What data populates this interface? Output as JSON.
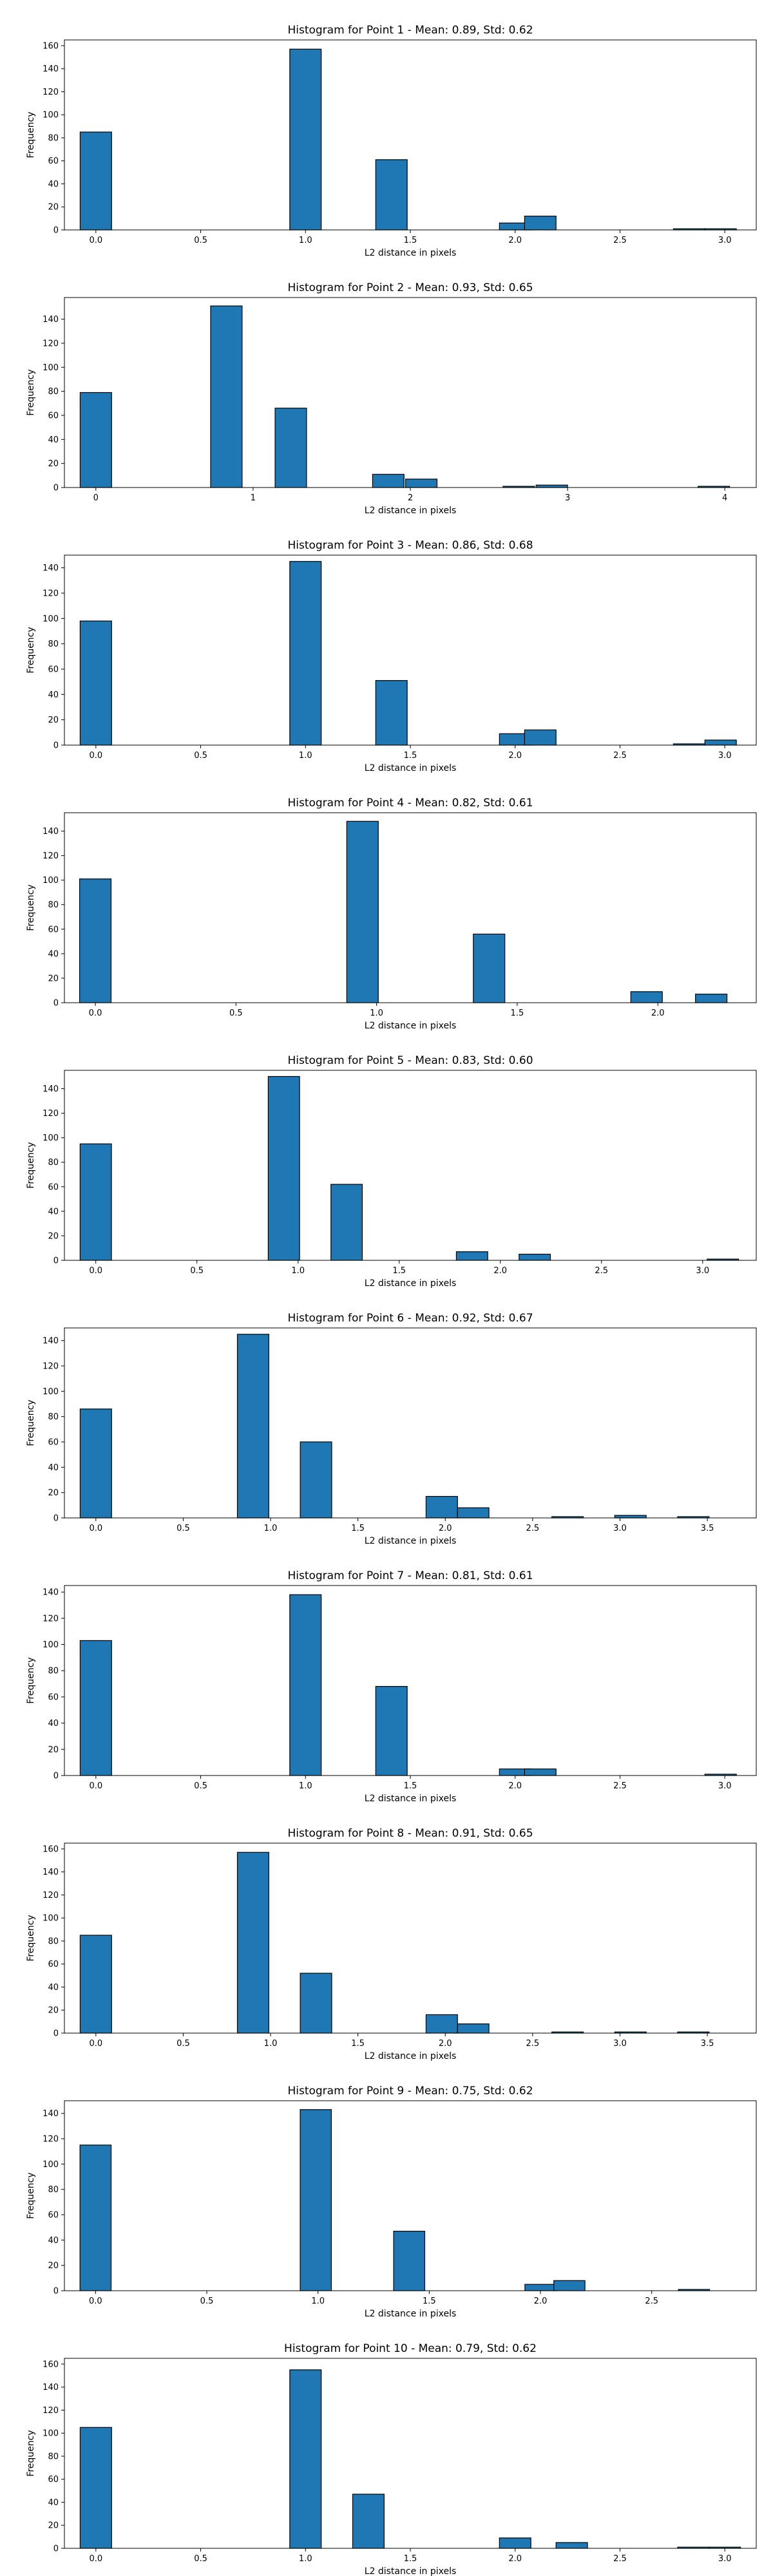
{
  "colors": {
    "bar_fill": "#1f77b4",
    "bar_edge": "#000000",
    "axes": "#000000",
    "background": "#ffffff"
  },
  "chart_data": [
    {
      "type": "bar",
      "title": "Histogram for Point 1 - Mean: 0.89, Std: 0.62",
      "xlabel": "L2 distance in pixels",
      "ylabel": "Frequency",
      "xlim": [
        -0.15,
        3.15
      ],
      "ylim": [
        0,
        165
      ],
      "xticks": [
        0.0,
        0.5,
        1.0,
        1.5,
        2.0,
        2.5,
        3.0
      ],
      "xtick_labels": [
        "0.0",
        "0.5",
        "1.0",
        "1.5",
        "2.0",
        "2.5",
        "3.0"
      ],
      "yticks": [
        0,
        20,
        40,
        60,
        80,
        100,
        120,
        140,
        160
      ],
      "bin_width": 0.15,
      "bins": [
        {
          "x": 0.0,
          "count": 85
        },
        {
          "x": 1.0,
          "count": 157
        },
        {
          "x": 1.41,
          "count": 61
        },
        {
          "x": 2.0,
          "count": 6
        },
        {
          "x": 2.12,
          "count": 12
        },
        {
          "x": 2.83,
          "count": 1
        },
        {
          "x": 2.98,
          "count": 1
        }
      ]
    },
    {
      "type": "bar",
      "title": "Histogram for Point 2 - Mean: 0.93, Std: 0.65",
      "xlabel": "L2 distance in pixels",
      "ylabel": "Frequency",
      "xlim": [
        -0.2,
        4.2
      ],
      "ylim": [
        0,
        158
      ],
      "xticks": [
        0,
        1,
        2,
        3,
        4
      ],
      "xtick_labels": [
        "0",
        "1",
        "2",
        "3",
        "4"
      ],
      "yticks": [
        0,
        20,
        40,
        60,
        80,
        100,
        120,
        140
      ],
      "bin_width": 0.2,
      "bins": [
        {
          "x": 0.0,
          "count": 79
        },
        {
          "x": 0.83,
          "count": 151
        },
        {
          "x": 1.24,
          "count": 66
        },
        {
          "x": 1.86,
          "count": 11
        },
        {
          "x": 2.07,
          "count": 7
        },
        {
          "x": 2.69,
          "count": 1
        },
        {
          "x": 2.9,
          "count": 2
        },
        {
          "x": 3.93,
          "count": 1
        }
      ]
    },
    {
      "type": "bar",
      "title": "Histogram for Point 3 - Mean: 0.86, Std: 0.68",
      "xlabel": "L2 distance in pixels",
      "ylabel": "Frequency",
      "xlim": [
        -0.15,
        3.15
      ],
      "ylim": [
        0,
        150
      ],
      "xticks": [
        0.0,
        0.5,
        1.0,
        1.5,
        2.0,
        2.5,
        3.0
      ],
      "xtick_labels": [
        "0.0",
        "0.5",
        "1.0",
        "1.5",
        "2.0",
        "2.5",
        "3.0"
      ],
      "yticks": [
        0,
        20,
        40,
        60,
        80,
        100,
        120,
        140
      ],
      "bin_width": 0.15,
      "bins": [
        {
          "x": 0.0,
          "count": 98
        },
        {
          "x": 1.0,
          "count": 145
        },
        {
          "x": 1.41,
          "count": 51
        },
        {
          "x": 2.0,
          "count": 9
        },
        {
          "x": 2.12,
          "count": 12
        },
        {
          "x": 2.83,
          "count": 1
        },
        {
          "x": 2.98,
          "count": 4
        }
      ]
    },
    {
      "type": "bar",
      "title": "Histogram for Point 4 - Mean: 0.82, Std: 0.61",
      "xlabel": "L2 distance in pixels",
      "ylabel": "Frequency",
      "xlim": [
        -0.11,
        2.35
      ],
      "ylim": [
        0,
        155
      ],
      "xticks": [
        0.0,
        0.5,
        1.0,
        1.5,
        2.0
      ],
      "xtick_labels": [
        "0.0",
        "0.5",
        "1.0",
        "1.5",
        "2.0"
      ],
      "yticks": [
        0,
        20,
        40,
        60,
        80,
        100,
        120,
        140
      ],
      "bin_width": 0.112,
      "bins": [
        {
          "x": 0.0,
          "count": 101
        },
        {
          "x": 0.95,
          "count": 148
        },
        {
          "x": 1.4,
          "count": 56
        },
        {
          "x": 1.96,
          "count": 9
        },
        {
          "x": 2.19,
          "count": 7
        }
      ]
    },
    {
      "type": "bar",
      "title": "Histogram for Point 5 - Mean: 0.83, Std: 0.60",
      "xlabel": "L2 distance in pixels",
      "ylabel": "Frequency",
      "xlim": [
        -0.155,
        3.265
      ],
      "ylim": [
        0,
        155
      ],
      "xticks": [
        0.0,
        0.5,
        1.0,
        1.5,
        2.0,
        2.5,
        3.0
      ],
      "xtick_labels": [
        "0.0",
        "0.5",
        "1.0",
        "1.5",
        "2.0",
        "2.5",
        "3.0"
      ],
      "yticks": [
        0,
        20,
        40,
        60,
        80,
        100,
        120,
        140
      ],
      "bin_width": 0.155,
      "bins": [
        {
          "x": 0.0,
          "count": 95
        },
        {
          "x": 0.93,
          "count": 150
        },
        {
          "x": 1.24,
          "count": 62
        },
        {
          "x": 1.86,
          "count": 7
        },
        {
          "x": 2.17,
          "count": 5
        },
        {
          "x": 3.1,
          "count": 1
        }
      ]
    },
    {
      "type": "bar",
      "title": "Histogram for Point 6 - Mean: 0.92, Std: 0.67",
      "xlabel": "L2 distance in pixels",
      "ylabel": "Frequency",
      "xlim": [
        -0.18,
        3.78
      ],
      "ylim": [
        0,
        150
      ],
      "xticks": [
        0.0,
        0.5,
        1.0,
        1.5,
        2.0,
        2.5,
        3.0,
        3.5
      ],
      "xtick_labels": [
        "0.0",
        "0.5",
        "1.0",
        "1.5",
        "2.0",
        "2.5",
        "3.0",
        "3.5"
      ],
      "yticks": [
        0,
        20,
        40,
        60,
        80,
        100,
        120,
        140
      ],
      "bin_width": 0.18,
      "bins": [
        {
          "x": 0.0,
          "count": 86
        },
        {
          "x": 0.9,
          "count": 145
        },
        {
          "x": 1.26,
          "count": 60
        },
        {
          "x": 1.98,
          "count": 17
        },
        {
          "x": 2.16,
          "count": 8
        },
        {
          "x": 2.7,
          "count": 1
        },
        {
          "x": 3.06,
          "count": 2
        },
        {
          "x": 3.42,
          "count": 1
        }
      ]
    },
    {
      "type": "bar",
      "title": "Histogram for Point 7 - Mean: 0.81, Std: 0.61",
      "xlabel": "L2 distance in pixels",
      "ylabel": "Frequency",
      "xlim": [
        -0.15,
        3.15
      ],
      "ylim": [
        0,
        145
      ],
      "xticks": [
        0.0,
        0.5,
        1.0,
        1.5,
        2.0,
        2.5,
        3.0
      ],
      "xtick_labels": [
        "0.0",
        "0.5",
        "1.0",
        "1.5",
        "2.0",
        "2.5",
        "3.0"
      ],
      "yticks": [
        0,
        20,
        40,
        60,
        80,
        100,
        120,
        140
      ],
      "bin_width": 0.15,
      "bins": [
        {
          "x": 0.0,
          "count": 103
        },
        {
          "x": 1.0,
          "count": 138
        },
        {
          "x": 1.41,
          "count": 68
        },
        {
          "x": 2.0,
          "count": 5
        },
        {
          "x": 2.12,
          "count": 5
        },
        {
          "x": 2.98,
          "count": 1
        }
      ]
    },
    {
      "type": "bar",
      "title": "Histogram for Point 8 - Mean: 0.91, Std: 0.65",
      "xlabel": "L2 distance in pixels",
      "ylabel": "Frequency",
      "xlim": [
        -0.18,
        3.78
      ],
      "ylim": [
        0,
        165
      ],
      "xticks": [
        0.0,
        0.5,
        1.0,
        1.5,
        2.0,
        2.5,
        3.0,
        3.5
      ],
      "xtick_labels": [
        "0.0",
        "0.5",
        "1.0",
        "1.5",
        "2.0",
        "2.5",
        "3.0",
        "3.5"
      ],
      "yticks": [
        0,
        20,
        40,
        60,
        80,
        100,
        120,
        140,
        160
      ],
      "bin_width": 0.18,
      "bins": [
        {
          "x": 0.0,
          "count": 85
        },
        {
          "x": 0.9,
          "count": 157
        },
        {
          "x": 1.26,
          "count": 52
        },
        {
          "x": 1.98,
          "count": 16
        },
        {
          "x": 2.16,
          "count": 8
        },
        {
          "x": 2.7,
          "count": 1
        },
        {
          "x": 3.06,
          "count": 1
        },
        {
          "x": 3.42,
          "count": 1
        }
      ]
    },
    {
      "type": "bar",
      "title": "Histogram for Point 9 - Mean: 0.75, Std: 0.62",
      "xlabel": "L2 distance in pixels",
      "ylabel": "Frequency",
      "xlim": [
        -0.14,
        2.97
      ],
      "ylim": [
        0,
        150
      ],
      "xticks": [
        0.0,
        0.5,
        1.0,
        1.5,
        2.0,
        2.5
      ],
      "xtick_labels": [
        "0.0",
        "0.5",
        "1.0",
        "1.5",
        "2.0",
        "2.5"
      ],
      "yticks": [
        0,
        20,
        40,
        60,
        80,
        100,
        120,
        140
      ],
      "bin_width": 0.14,
      "bins": [
        {
          "x": 0.0,
          "count": 115
        },
        {
          "x": 0.99,
          "count": 143
        },
        {
          "x": 1.41,
          "count": 47
        },
        {
          "x": 2.0,
          "count": 5
        },
        {
          "x": 2.13,
          "count": 8
        },
        {
          "x": 2.69,
          "count": 1
        }
      ]
    },
    {
      "type": "bar",
      "title": "Histogram for Point 10 - Mean: 0.79, Std: 0.62",
      "xlabel": "L2 distance in pixels",
      "ylabel": "Frequency",
      "xlim": [
        -0.15,
        3.15
      ],
      "ylim": [
        0,
        165
      ],
      "xticks": [
        0.0,
        0.5,
        1.0,
        1.5,
        2.0,
        2.5,
        3.0
      ],
      "xtick_labels": [
        "0.0",
        "0.5",
        "1.0",
        "1.5",
        "2.0",
        "2.5",
        "3.0"
      ],
      "yticks": [
        0,
        20,
        40,
        60,
        80,
        100,
        120,
        140,
        160
      ],
      "bin_width": 0.15,
      "bins": [
        {
          "x": 0.0,
          "count": 105
        },
        {
          "x": 1.0,
          "count": 155
        },
        {
          "x": 1.3,
          "count": 47
        },
        {
          "x": 2.0,
          "count": 9
        },
        {
          "x": 2.27,
          "count": 5
        },
        {
          "x": 2.85,
          "count": 1
        },
        {
          "x": 3.0,
          "count": 1
        }
      ]
    }
  ]
}
